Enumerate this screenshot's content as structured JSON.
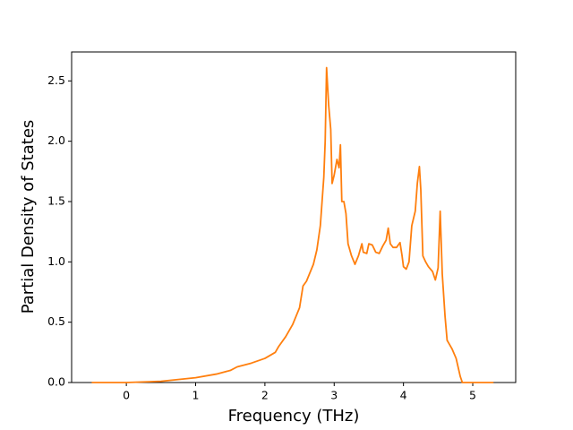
{
  "chart_data": {
    "type": "line",
    "xlabel": "Frequency (THz)",
    "ylabel": "Partial Density of States",
    "x": [
      -0.5,
      0,
      0.5,
      1,
      1.3,
      1.5,
      1.6,
      1.8,
      2.0,
      2.15,
      2.2,
      2.3,
      2.4,
      2.45,
      2.5,
      2.55,
      2.6,
      2.7,
      2.75,
      2.8,
      2.85,
      2.87,
      2.89,
      2.92,
      2.95,
      2.97,
      3.0,
      3.04,
      3.07,
      3.09,
      3.11,
      3.14,
      3.17,
      3.2,
      3.25,
      3.3,
      3.35,
      3.4,
      3.42,
      3.47,
      3.5,
      3.55,
      3.6,
      3.65,
      3.7,
      3.75,
      3.78,
      3.81,
      3.85,
      3.9,
      3.95,
      3.98,
      4.0,
      4.04,
      4.08,
      4.12,
      4.17,
      4.2,
      4.23,
      4.25,
      4.28,
      4.32,
      4.36,
      4.42,
      4.46,
      4.5,
      4.53,
      4.56,
      4.6,
      4.63,
      4.7,
      4.76,
      4.82,
      4.85,
      5.3
    ],
    "series": [
      {
        "color": "#ff7f0e",
        "values": [
          0,
          0,
          0.01,
          0.04,
          0.07,
          0.1,
          0.13,
          0.16,
          0.2,
          0.25,
          0.3,
          0.38,
          0.48,
          0.55,
          0.62,
          0.8,
          0.84,
          0.98,
          1.1,
          1.3,
          1.7,
          2.0,
          2.61,
          2.3,
          2.1,
          1.65,
          1.72,
          1.85,
          1.78,
          1.97,
          1.5,
          1.5,
          1.4,
          1.15,
          1.05,
          0.98,
          1.05,
          1.15,
          1.08,
          1.07,
          1.15,
          1.14,
          1.08,
          1.07,
          1.13,
          1.18,
          1.28,
          1.15,
          1.12,
          1.12,
          1.16,
          1.05,
          0.96,
          0.94,
          1.0,
          1.3,
          1.42,
          1.65,
          1.79,
          1.6,
          1.05,
          1.0,
          0.96,
          0.92,
          0.85,
          0.95,
          1.42,
          0.9,
          0.55,
          0.35,
          0.28,
          0.2,
          0.05,
          0,
          0
        ]
      }
    ],
    "xlim": [
      -0.79,
      5.62
    ],
    "ylim": [
      0,
      2.74
    ],
    "xticks": [
      0,
      1,
      2,
      3,
      4,
      5
    ],
    "yticks": [
      {
        "value": 0,
        "label": "0.0"
      },
      0.5,
      {
        "value": 1,
        "label": "1.0"
      },
      1.5,
      {
        "value": 2,
        "label": "2.0"
      },
      2.5
    ]
  }
}
